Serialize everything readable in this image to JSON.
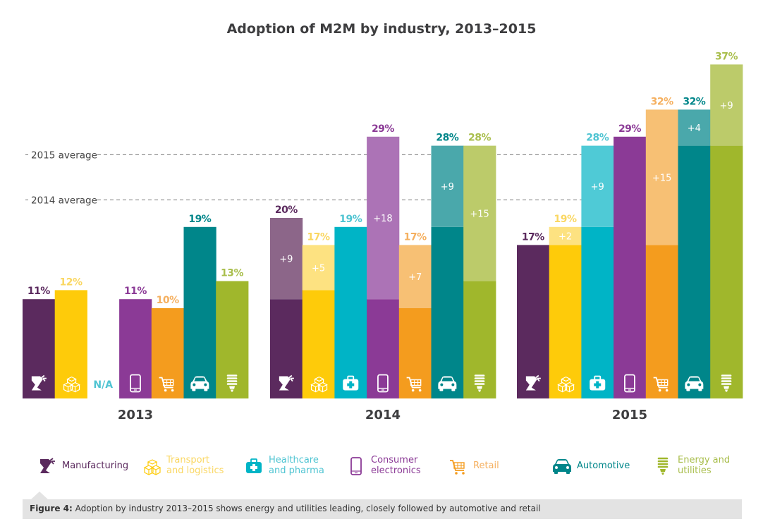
{
  "chart_data": {
    "type": "bar",
    "title": "Adoption of M2M by industry, 2013–2015",
    "xlabel": "",
    "ylabel": "",
    "ylim": [
      0,
      40
    ],
    "grid": false,
    "groups": [
      "2013",
      "2014",
      "2015"
    ],
    "categories": [
      "Manufacturing",
      "Transport and logistics",
      "Healthcare and pharma",
      "Consumer electronics",
      "Retail",
      "Automotive",
      "Energy and utilities"
    ],
    "series": [
      {
        "name": "2013",
        "values": [
          11,
          12,
          null,
          11,
          10,
          19,
          13
        ],
        "labels": [
          "11%",
          "12%",
          "N/A",
          "11%",
          "10%",
          "19%",
          "13%"
        ],
        "increments": [
          null,
          null,
          null,
          null,
          null,
          null,
          null
        ]
      },
      {
        "name": "2014",
        "values": [
          20,
          17,
          19,
          29,
          17,
          28,
          28
        ],
        "labels": [
          "20%",
          "17%",
          "19%",
          "29%",
          "17%",
          "28%",
          "28%"
        ],
        "increments": [
          "+9",
          "+5",
          null,
          "+18",
          "+7",
          "+9",
          "+15"
        ]
      },
      {
        "name": "2015",
        "values": [
          17,
          19,
          28,
          29,
          32,
          32,
          37
        ],
        "labels": [
          "17%",
          "19%",
          "28%",
          "29%",
          "32%",
          "32%",
          "37%"
        ],
        "increments": [
          null,
          "+2",
          "+9",
          null,
          "+15",
          "+4",
          "+9"
        ]
      }
    ],
    "reference_lines": [
      {
        "label": "2015 average",
        "value": 27
      },
      {
        "label": "2014 average",
        "value": 22
      }
    ],
    "legend": {
      "placement": "bottom"
    }
  },
  "colors": {
    "Manufacturing": {
      "base": "#5b2a5e",
      "light": "#8c6689",
      "label": "#5b2a5e"
    },
    "Transport and logistics": {
      "base": "#fecb0a",
      "light": "#fde281",
      "label": "#fad762"
    },
    "Healthcare and pharma": {
      "base": "#00b4c6",
      "light": "#4fcad6",
      "label": "#4fc4d2"
    },
    "Consumer electronics": {
      "base": "#8b3a96",
      "light": "#ac73b6",
      "label": "#8b3a96"
    },
    "Retail": {
      "base": "#f49c1e",
      "light": "#f7c074",
      "label": "#f5b060"
    },
    "Automotive": {
      "base": "#00868a",
      "light": "#4aa8ab",
      "label": "#00868a"
    },
    "Energy and utilities": {
      "base": "#a0b72c",
      "light": "#bccb6a",
      "label": "#a9be4c"
    }
  },
  "icons": [
    "robot-arm-icon",
    "boxes-icon",
    "medical-kit-icon",
    "smartphone-icon",
    "shopping-cart-icon",
    "car-icon",
    "lightbulb-icon"
  ],
  "legend_items": [
    {
      "label": "Manufacturing",
      "icon": "robot-arm-icon"
    },
    {
      "label": "Transport\nand logistics",
      "icon": "boxes-icon"
    },
    {
      "label": "Healthcare\nand pharma",
      "icon": "medical-kit-icon"
    },
    {
      "label": "Consumer\nelectronics",
      "icon": "smartphone-icon"
    },
    {
      "label": "Retail",
      "icon": "shopping-cart-icon"
    },
    {
      "label": "Automotive",
      "icon": "car-icon"
    },
    {
      "label": "Energy and\nutilities",
      "icon": "lightbulb-icon"
    }
  ],
  "caption": {
    "prefix": "Figure 4:",
    "text": " Adoption by industry 2013–2015 shows energy and utilities leading, closely followed by automotive and retail"
  }
}
